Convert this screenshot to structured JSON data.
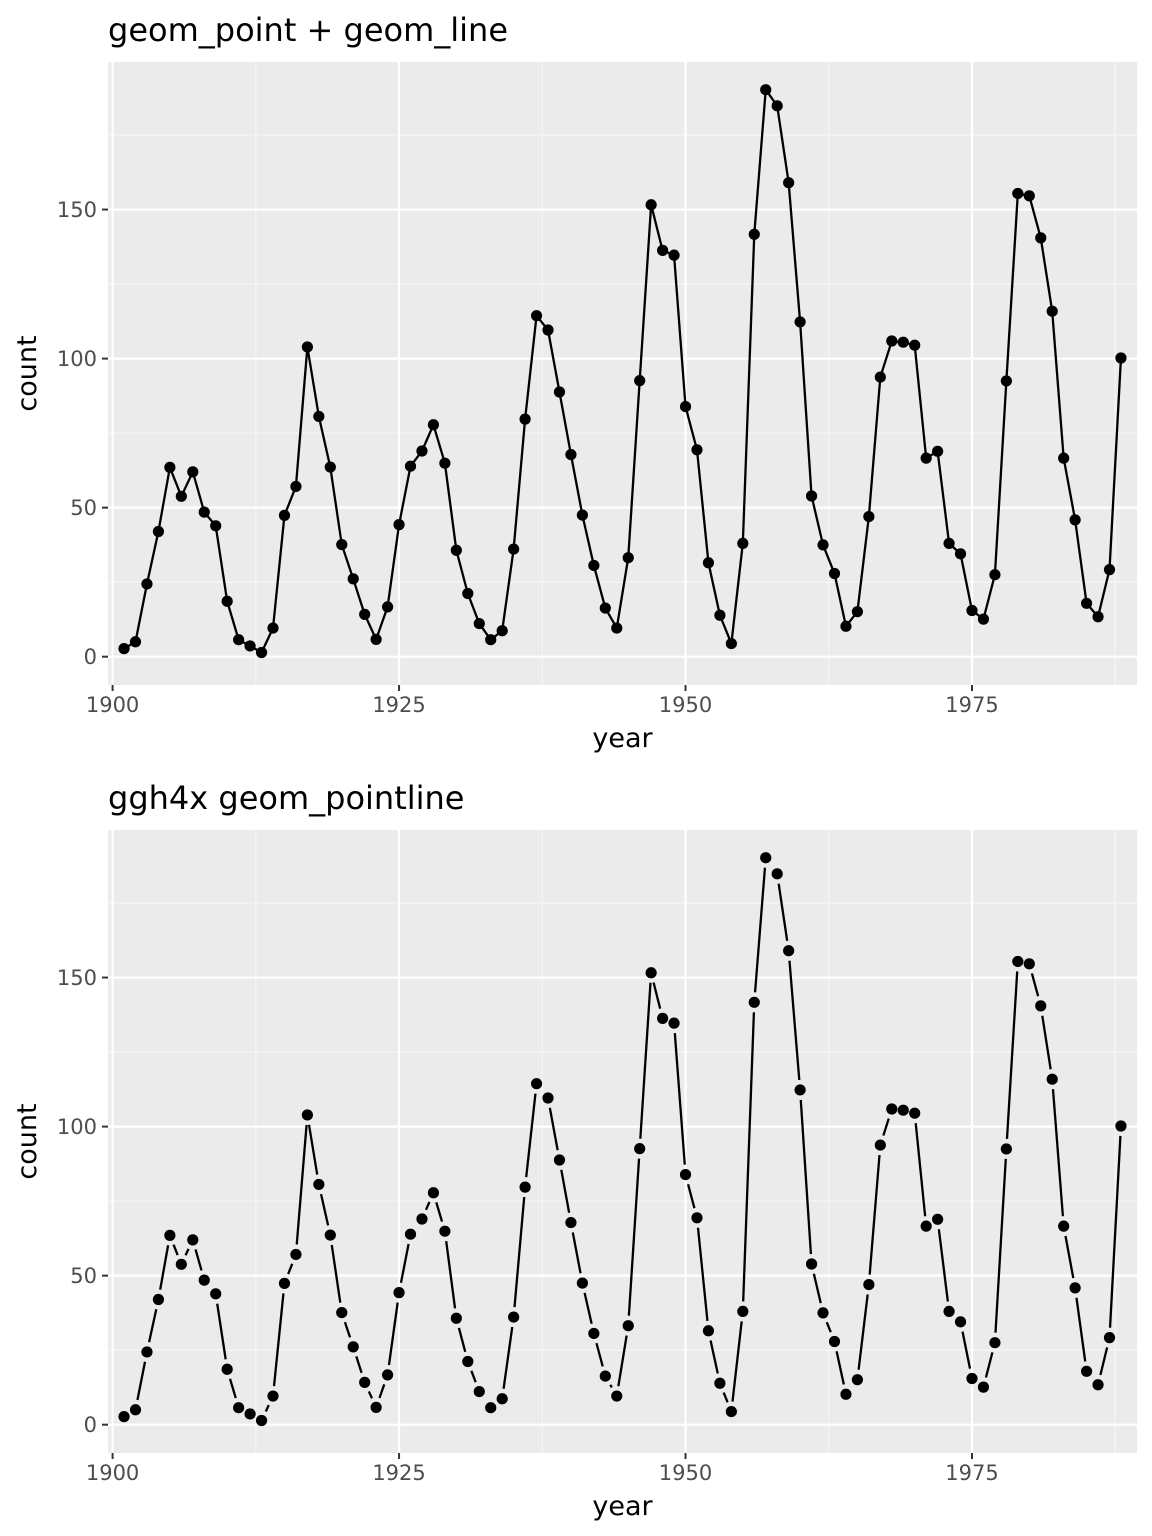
{
  "chart_data": [
    {
      "type": "line",
      "title": "geom_point + geom_line",
      "xlabel": "year",
      "ylabel": "count",
      "xlim": [
        1899.6,
        1989.4
      ],
      "ylim": [
        -9.5,
        199.5
      ],
      "x_ticks": [
        1900,
        1925,
        1950,
        1975
      ],
      "y_ticks": [
        0,
        50,
        100,
        150
      ],
      "grid": true,
      "line_style": "solid",
      "series": [
        {
          "x": [
            1901,
            1902,
            1903,
            1904,
            1905,
            1906,
            1907,
            1908,
            1909,
            1910,
            1911,
            1912,
            1913,
            1914,
            1915,
            1916,
            1917,
            1918,
            1919,
            1920,
            1921,
            1922,
            1923,
            1924,
            1925,
            1926,
            1927,
            1928,
            1929,
            1930,
            1931,
            1932,
            1933,
            1934,
            1935,
            1936,
            1937,
            1938,
            1939,
            1940,
            1941,
            1942,
            1943,
            1944,
            1945,
            1946,
            1947,
            1948,
            1949,
            1950,
            1951,
            1952,
            1953,
            1954,
            1955,
            1956,
            1957,
            1958,
            1959,
            1960,
            1961,
            1962,
            1963,
            1964,
            1965,
            1966,
            1967,
            1968,
            1969,
            1970,
            1971,
            1972,
            1973,
            1974,
            1975,
            1976,
            1977,
            1978,
            1979,
            1980,
            1981,
            1982,
            1983,
            1984,
            1985,
            1986,
            1987,
            1988
          ],
          "y": [
            2.7,
            5.0,
            24.4,
            42.0,
            63.5,
            53.8,
            62.0,
            48.5,
            43.9,
            18.6,
            5.7,
            3.6,
            1.4,
            9.6,
            47.4,
            57.1,
            103.9,
            80.6,
            63.6,
            37.6,
            26.1,
            14.2,
            5.8,
            16.7,
            44.3,
            63.9,
            69.0,
            77.8,
            64.9,
            35.7,
            21.2,
            11.1,
            5.7,
            8.7,
            36.1,
            79.7,
            114.4,
            109.6,
            88.8,
            67.8,
            47.5,
            30.6,
            16.3,
            9.6,
            33.2,
            92.6,
            151.6,
            136.3,
            134.7,
            83.9,
            69.4,
            31.5,
            13.9,
            4.4,
            38.0,
            141.7,
            190.2,
            184.8,
            159.0,
            112.3,
            53.9,
            37.5,
            27.9,
            10.2,
            15.1,
            47.0,
            93.8,
            105.9,
            105.5,
            104.5,
            66.6,
            68.9,
            38.0,
            34.5,
            15.5,
            12.6,
            27.5,
            92.5,
            155.4,
            154.6,
            140.5,
            115.9,
            66.6,
            45.9,
            17.9,
            13.4,
            29.2,
            100.2
          ]
        }
      ]
    },
    {
      "type": "line",
      "title": "ggh4x geom_pointline",
      "xlabel": "year",
      "ylabel": "count",
      "xlim": [
        1899.6,
        1989.4
      ],
      "ylim": [
        -9.5,
        199.5
      ],
      "x_ticks": [
        1900,
        1925,
        1950,
        1975
      ],
      "y_ticks": [
        0,
        50,
        100,
        150
      ],
      "grid": true,
      "line_style": "gapped",
      "series": [
        {
          "x": [
            1901,
            1902,
            1903,
            1904,
            1905,
            1906,
            1907,
            1908,
            1909,
            1910,
            1911,
            1912,
            1913,
            1914,
            1915,
            1916,
            1917,
            1918,
            1919,
            1920,
            1921,
            1922,
            1923,
            1924,
            1925,
            1926,
            1927,
            1928,
            1929,
            1930,
            1931,
            1932,
            1933,
            1934,
            1935,
            1936,
            1937,
            1938,
            1939,
            1940,
            1941,
            1942,
            1943,
            1944,
            1945,
            1946,
            1947,
            1948,
            1949,
            1950,
            1951,
            1952,
            1953,
            1954,
            1955,
            1956,
            1957,
            1958,
            1959,
            1960,
            1961,
            1962,
            1963,
            1964,
            1965,
            1966,
            1967,
            1968,
            1969,
            1970,
            1971,
            1972,
            1973,
            1974,
            1975,
            1976,
            1977,
            1978,
            1979,
            1980,
            1981,
            1982,
            1983,
            1984,
            1985,
            1986,
            1987,
            1988
          ],
          "y": [
            2.7,
            5.0,
            24.4,
            42.0,
            63.5,
            53.8,
            62.0,
            48.5,
            43.9,
            18.6,
            5.7,
            3.6,
            1.4,
            9.6,
            47.4,
            57.1,
            103.9,
            80.6,
            63.6,
            37.6,
            26.1,
            14.2,
            5.8,
            16.7,
            44.3,
            63.9,
            69.0,
            77.8,
            64.9,
            35.7,
            21.2,
            11.1,
            5.7,
            8.7,
            36.1,
            79.7,
            114.4,
            109.6,
            88.8,
            67.8,
            47.5,
            30.6,
            16.3,
            9.6,
            33.2,
            92.6,
            151.6,
            136.3,
            134.7,
            83.9,
            69.4,
            31.5,
            13.9,
            4.4,
            38.0,
            141.7,
            190.2,
            184.8,
            159.0,
            112.3,
            53.9,
            37.5,
            27.9,
            10.2,
            15.1,
            47.0,
            93.8,
            105.9,
            105.5,
            104.5,
            66.6,
            68.9,
            38.0,
            34.5,
            15.5,
            12.6,
            27.5,
            92.5,
            155.4,
            154.6,
            140.5,
            115.9,
            66.6,
            45.9,
            17.9,
            13.4,
            29.2,
            100.2
          ]
        }
      ]
    }
  ],
  "colors": {
    "panel_background": "#ebebeb",
    "grid_major": "#ffffff",
    "grid_minor": "#f7f7f7",
    "ink": "#000000",
    "tick_text": "#4d4d4d"
  }
}
